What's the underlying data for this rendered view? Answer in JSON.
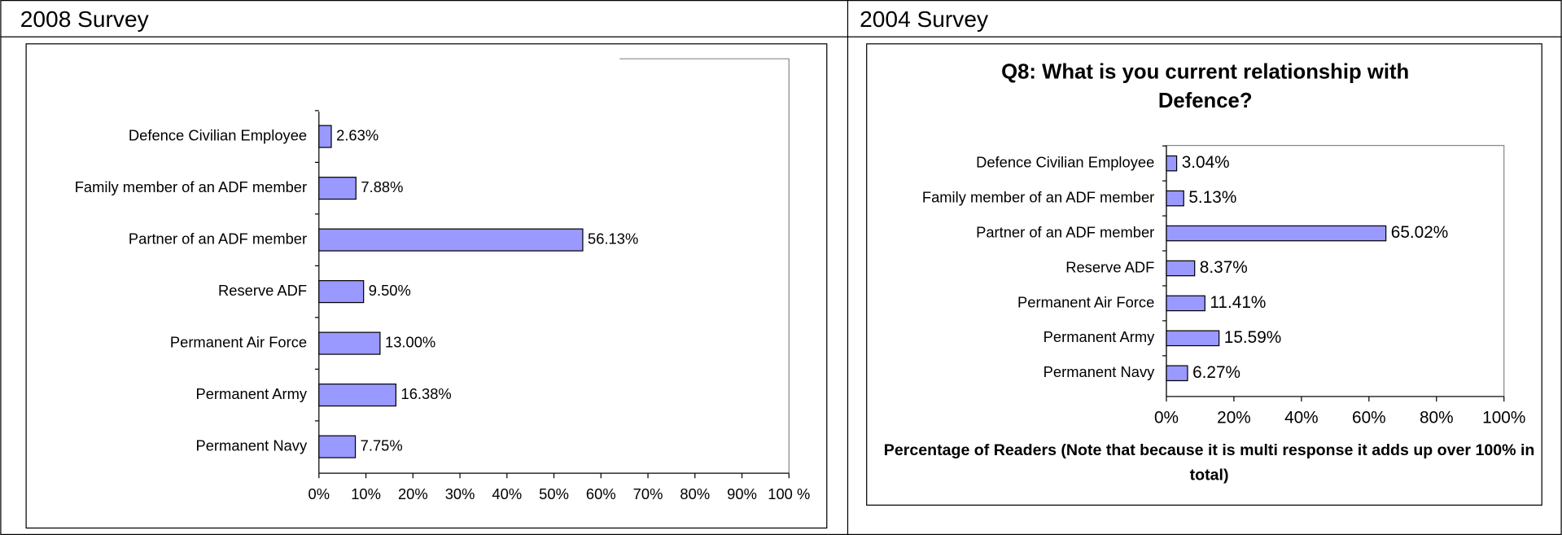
{
  "chart_data": [
    {
      "heading": "2008 Survey",
      "type": "bar",
      "orientation": "horizontal",
      "categories": [
        "Defence Civilian Employee",
        "Family member of an ADF member",
        "Partner of an ADF member",
        "Reserve ADF",
        "Permanent Air Force",
        "Permanent Army",
        "Permanent Navy"
      ],
      "values": [
        2.63,
        7.88,
        56.13,
        9.5,
        13.0,
        16.38,
        7.75
      ],
      "value_labels": [
        "2.63%",
        "7.88%",
        "56.13%",
        "9.50%",
        "13.00%",
        "16.38%",
        "7.75%"
      ],
      "color": "#9999ff",
      "grid": false,
      "xlim": [
        0,
        100
      ],
      "xticks": [
        {
          "value": 0,
          "label": "0%"
        },
        {
          "value": 10,
          "label": "10%"
        },
        {
          "value": 20,
          "label": "20%"
        },
        {
          "value": 30,
          "label": "30%"
        },
        {
          "value": 40,
          "label": "40%"
        },
        {
          "value": 50,
          "label": "50%"
        },
        {
          "value": 60,
          "label": "60%"
        },
        {
          "value": 70,
          "label": "70%"
        },
        {
          "value": 80,
          "label": "80%"
        },
        {
          "value": 90,
          "label": "90%"
        },
        {
          "value": 100,
          "label": "100 %"
        }
      ]
    },
    {
      "heading": "2004 Survey",
      "type": "bar",
      "orientation": "horizontal",
      "title": "Q8: What is you current relationship with Defence?",
      "xlabel": "Percentage of Readers (Note that because it is multi response it adds up over 100% in total)",
      "categories": [
        "Defence Civilian Employee",
        "Family member of an ADF member",
        "Partner of an ADF member",
        "Reserve ADF",
        "Permanent Air Force",
        "Permanent Army",
        "Permanent Navy"
      ],
      "values": [
        3.04,
        5.13,
        65.02,
        8.37,
        11.41,
        15.59,
        6.27
      ],
      "value_labels": [
        "3.04%",
        "5.13%",
        "65.02%",
        "8.37%",
        "11.41%",
        "15.59%",
        "6.27%"
      ],
      "color": "#9999ff",
      "grid": false,
      "xlim": [
        0,
        100
      ],
      "xticks": [
        {
          "value": 0,
          "label": "0%"
        },
        {
          "value": 20,
          "label": "20%"
        },
        {
          "value": 40,
          "label": "40%"
        },
        {
          "value": 60,
          "label": "60%"
        },
        {
          "value": 80,
          "label": "80%"
        },
        {
          "value": 100,
          "label": "100%"
        }
      ]
    }
  ]
}
